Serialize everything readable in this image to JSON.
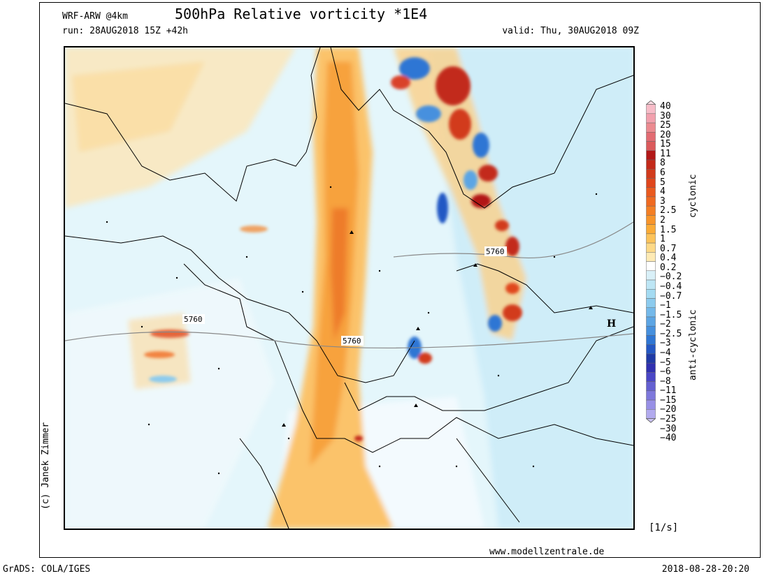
{
  "header": {
    "model": "WRF-ARW @4km",
    "title": "500hPa Relative vorticity *1E4",
    "run": "run: 28AUG2018 15Z +42h",
    "valid": "valid: Thu, 30AUG2018 09Z"
  },
  "footer": {
    "copyright": "(c) Janek Zimmer",
    "website": "www.modellzentrale.de",
    "software": "GrADS: COLA/IGES",
    "timestamp": "2018-08-28-20:20"
  },
  "map": {
    "contour_labels": [
      "5760",
      "5760",
      "5760"
    ],
    "pressure_marker": "H"
  },
  "legend": {
    "unit": "[1/s]",
    "upper_label": "cyclonic",
    "lower_label": "anti-cyclonic",
    "levels": [
      "40",
      "30",
      "25",
      "20",
      "15",
      "11",
      "8",
      "6",
      "5",
      "4",
      "3",
      "2.5",
      "2",
      "1.5",
      "1",
      "0.7",
      "0.4",
      "0.2",
      "−0.2",
      "−0.4",
      "−0.7",
      "−1",
      "−1.5",
      "−2",
      "−2.5",
      "−3",
      "−4",
      "−5",
      "−6",
      "−8",
      "−11",
      "−15",
      "−20",
      "−25",
      "−30",
      "−40"
    ],
    "colors": [
      "#fcdce4",
      "#f7bcc8",
      "#f2a0ad",
      "#ec8a90",
      "#e36b72",
      "#dc5a5c",
      "#b21818",
      "#c32a1a",
      "#d23b1c",
      "#e0461c",
      "#ea5a1f",
      "#f06a21",
      "#f47f24",
      "#f8952a",
      "#fbab36",
      "#fcc35a",
      "#fdd987",
      "#feeab4",
      "#ffffff",
      "#d9f0f8",
      "#bde6f5",
      "#a4dbf2",
      "#8ccbee",
      "#74b9ea",
      "#5ca5e4",
      "#4690de",
      "#2f76d4",
      "#2458c4",
      "#1f3aa6",
      "#3030b0",
      "#4a46c6",
      "#6460d2",
      "#7e78dc",
      "#9890e6",
      "#b2aaee",
      "#ccc4f4"
    ]
  }
}
